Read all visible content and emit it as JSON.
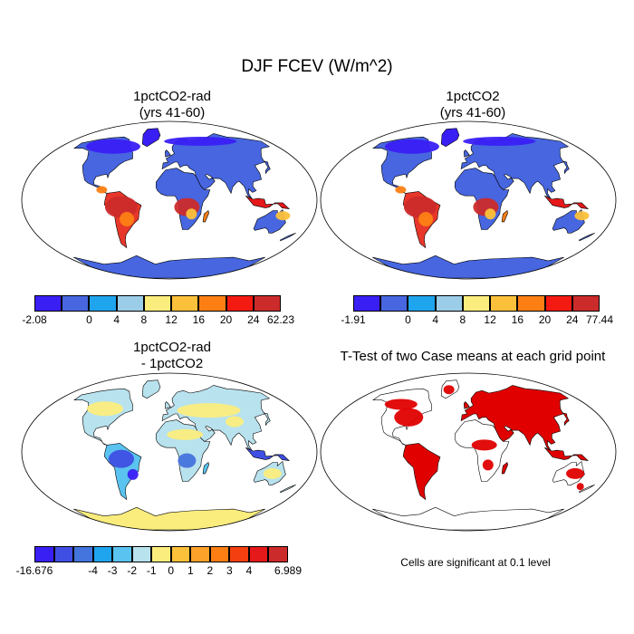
{
  "title": "DJF FCEV (W/m^2)",
  "panels": [
    {
      "id": "p1",
      "title_line1": "1pctCO2-rad",
      "title_line2": "(yrs 41-60)",
      "colorbar": {
        "colors": [
          "#3a1ff5",
          "#4766e0",
          "#1fa4ee",
          "#9ccde8",
          "#fbed7d",
          "#fcc13a",
          "#fd7f14",
          "#f41a12",
          "#cc2b2b"
        ],
        "labels": [
          "-2.08",
          "0",
          "4",
          "8",
          "12",
          "16",
          "20",
          "24",
          "62.23"
        ]
      }
    },
    {
      "id": "p2",
      "title_line1": "1pctCO2",
      "title_line2": "(yrs 41-60)",
      "colorbar": {
        "colors": [
          "#3a1ff5",
          "#4766e0",
          "#1fa4ee",
          "#9ccde8",
          "#fbed7d",
          "#fcc13a",
          "#fd7f14",
          "#f41a12",
          "#cc2b2b"
        ],
        "labels": [
          "-1.91",
          "0",
          "4",
          "8",
          "12",
          "16",
          "20",
          "24",
          "77.44"
        ]
      }
    },
    {
      "id": "p3",
      "title_line1": "1pctCO2-rad",
      "title_line2": "- 1pctCO2",
      "colorbar": {
        "colors": [
          "#3a1ff5",
          "#3f4fe3",
          "#4474dd",
          "#1fa4ee",
          "#5ac3ef",
          "#b8e2ee",
          "#fbed7d",
          "#fcc13a",
          "#fca12a",
          "#fd7f14",
          "#f44010",
          "#e5181a",
          "#cc2b2b"
        ],
        "labels": [
          "-16.676",
          "-4",
          "-3",
          "-2",
          "-1",
          "0",
          "1",
          "2",
          "3",
          "4",
          "6.989"
        ]
      }
    },
    {
      "id": "p4",
      "title_line1": "T-Test of two Case means at each grid point",
      "title_line2": "",
      "note": "Cells are significant at 0.1 level",
      "signif_color": "#e00000"
    }
  ]
}
